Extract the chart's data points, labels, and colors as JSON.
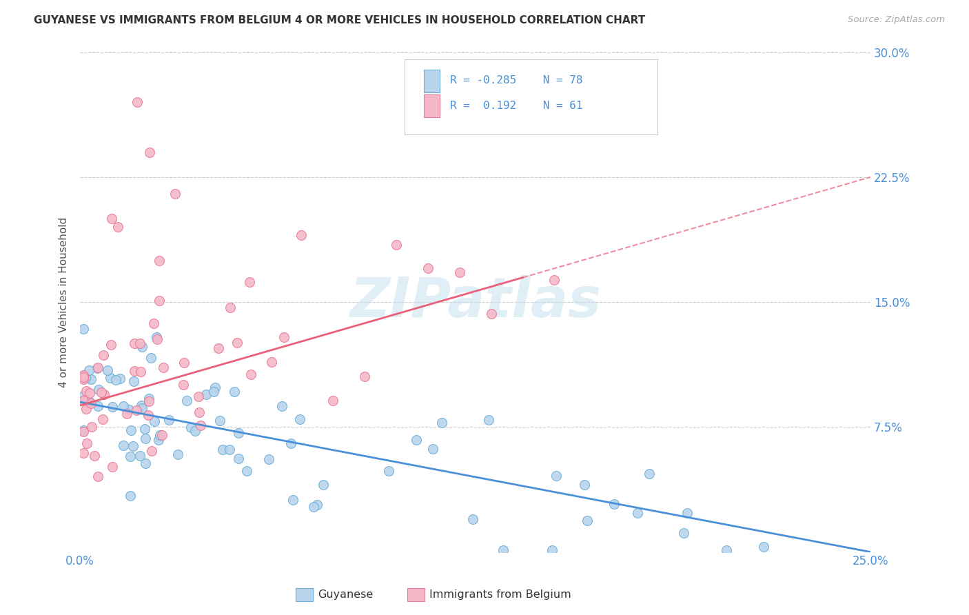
{
  "title": "GUYANESE VS IMMIGRANTS FROM BELGIUM 4 OR MORE VEHICLES IN HOUSEHOLD CORRELATION CHART",
  "source": "Source: ZipAtlas.com",
  "ylabel": "4 or more Vehicles in Household",
  "xlim": [
    0.0,
    0.25
  ],
  "ylim": [
    0.0,
    0.3
  ],
  "xticklabels_vals": [
    0.0,
    0.25
  ],
  "xticklabels_text": [
    "0.0%",
    "25.0%"
  ],
  "yticklabels_vals": [
    0.075,
    0.15,
    0.225,
    0.3
  ],
  "yticklabels_text": [
    "7.5%",
    "15.0%",
    "22.5%",
    "30.0%"
  ],
  "legend_labels": [
    "Guyanese",
    "Immigrants from Belgium"
  ],
  "blue_fill": "#b8d4ed",
  "blue_edge": "#6aaed6",
  "pink_fill": "#f5b8c8",
  "pink_edge": "#e87a96",
  "blue_line_color": "#4a90d9",
  "pink_line_color": "#e8607a",
  "R_blue": -0.285,
  "N_blue": 78,
  "R_pink": 0.192,
  "N_pink": 61,
  "watermark": "ZIPatlas",
  "blue_line_start_y": 0.09,
  "blue_line_end_y": 0.0,
  "pink_line_start_y": 0.088,
  "pink_line_end_y": 0.225
}
